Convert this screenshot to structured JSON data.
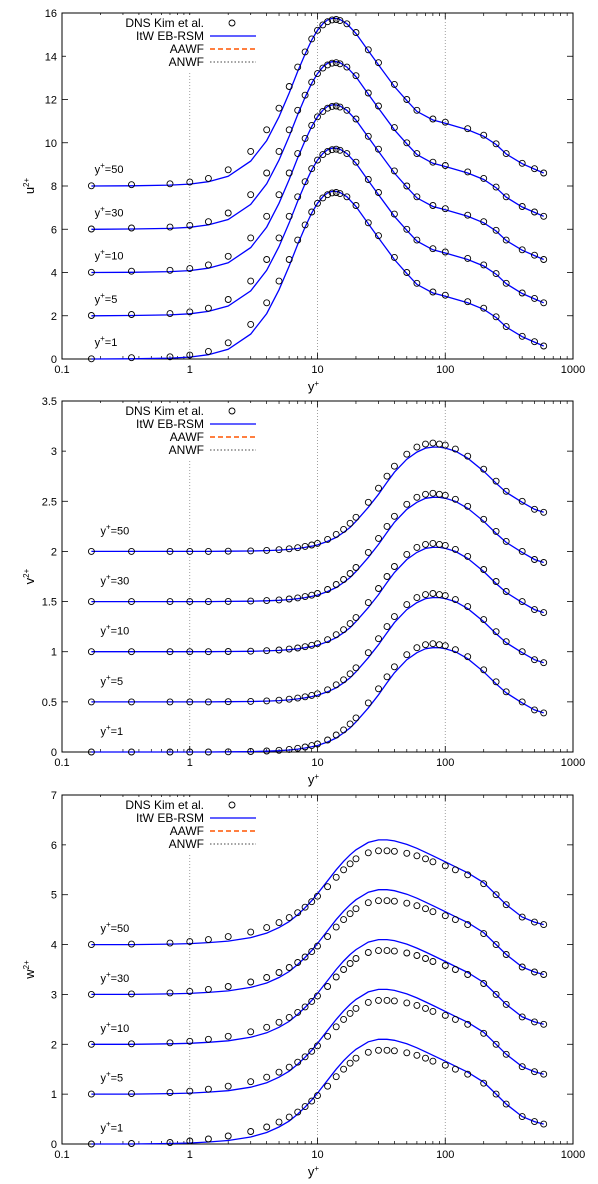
{
  "chart_data": [
    {
      "type": "line",
      "ylabel": "u",
      "ylabel_sup": "2+",
      "xlabel": "y",
      "xlabel_sup": "+",
      "xscale": "log",
      "xlim": [
        0.1,
        1000
      ],
      "ylim": [
        0,
        16
      ],
      "xticks": [
        "0.1",
        "1",
        "10",
        "100",
        "1000"
      ],
      "yticks": [
        "0",
        "2",
        "4",
        "6",
        "8",
        "10",
        "12",
        "14",
        "16"
      ],
      "grid": "vertical at decades",
      "legend": "top-left",
      "offset_step": 2,
      "annotations": [
        {
          "text": "y",
          "sup": "+",
          "rest": "=1",
          "x": 0.18,
          "y": 0.6
        },
        {
          "text": "y",
          "sup": "+",
          "rest": "=5",
          "x": 0.18,
          "y": 2.6
        },
        {
          "text": "y",
          "sup": "+",
          "rest": "=10",
          "x": 0.18,
          "y": 4.6
        },
        {
          "text": "y",
          "sup": "+",
          "rest": "=30",
          "x": 0.18,
          "y": 6.6
        },
        {
          "text": "y",
          "sup": "+",
          "rest": "=50",
          "x": 0.18,
          "y": 8.6
        }
      ],
      "series": [
        {
          "name": "DNS Kim et al.",
          "style": "circles",
          "color": "#000000",
          "x": [
            0.17,
            0.35,
            0.7,
            1.0,
            1.4,
            2.0,
            3.0,
            4.0,
            5.0,
            6.0,
            7.0,
            8.0,
            9.0,
            10.0,
            11.0,
            12.0,
            13.0,
            14.0,
            15.0,
            17.0,
            20.0,
            25.0,
            30.0,
            40.0,
            50.0,
            60.0,
            80.0,
            100.0,
            150.0,
            200.0,
            250.0,
            300.0,
            400.0,
            500.0,
            590.0
          ],
          "y": [
            0.01,
            0.06,
            0.1,
            0.18,
            0.35,
            0.75,
            1.6,
            2.6,
            3.6,
            4.6,
            5.5,
            6.2,
            6.8,
            7.2,
            7.45,
            7.6,
            7.68,
            7.7,
            7.65,
            7.5,
            7.1,
            6.3,
            5.7,
            4.7,
            4.0,
            3.5,
            3.1,
            2.95,
            2.65,
            2.35,
            1.95,
            1.5,
            1.05,
            0.8,
            0.6
          ]
        },
        {
          "name": "ItW EB-RSM",
          "style": "line",
          "color": "#0000ff",
          "x": [
            0.17,
            0.35,
            0.7,
            1.0,
            1.4,
            2.0,
            3.0,
            4.0,
            5.0,
            6.0,
            7.0,
            8.0,
            9.0,
            10.0,
            11.0,
            12.0,
            13.0,
            14.0,
            15.0,
            17.0,
            20.0,
            25.0,
            30.0,
            40.0,
            50.0,
            60.0,
            80.0,
            100.0,
            150.0,
            200.0,
            250.0,
            300.0,
            400.0,
            500.0,
            590.0
          ],
          "y": [
            0.0,
            0.01,
            0.04,
            0.09,
            0.2,
            0.45,
            1.15,
            2.1,
            3.2,
            4.3,
            5.3,
            6.1,
            6.75,
            7.2,
            7.5,
            7.68,
            7.75,
            7.75,
            7.7,
            7.5,
            7.05,
            6.25,
            5.6,
            4.6,
            3.95,
            3.45,
            3.05,
            2.9,
            2.6,
            2.3,
            1.92,
            1.48,
            1.03,
            0.78,
            0.6
          ]
        },
        {
          "name": "AAWF",
          "style": "dashed",
          "color": "#ff5500",
          "x": [],
          "y": []
        },
        {
          "name": "ANWF",
          "style": "dotted",
          "color": "#444444",
          "x": [],
          "y": []
        }
      ]
    },
    {
      "type": "line",
      "ylabel": "v",
      "ylabel_sup": "2+",
      "xlabel": "y",
      "xlabel_sup": "+",
      "xscale": "log",
      "xlim": [
        0.1,
        1000
      ],
      "ylim": [
        0,
        3.5
      ],
      "xticks": [
        "0.1",
        "1",
        "10",
        "100",
        "1000"
      ],
      "yticks": [
        "0",
        "0.5",
        "1",
        "1.5",
        "2",
        "2.5",
        "3",
        "3.5"
      ],
      "grid": "vertical at decades",
      "legend": "top-left",
      "offset_step": 0.5,
      "annotations": [
        {
          "text": "y",
          "sup": "+",
          "rest": "=1",
          "x": 0.2,
          "y": 0.17
        },
        {
          "text": "y",
          "sup": "+",
          "rest": "=5",
          "x": 0.2,
          "y": 0.67
        },
        {
          "text": "y",
          "sup": "+",
          "rest": "=10",
          "x": 0.2,
          "y": 1.17
        },
        {
          "text": "y",
          "sup": "+",
          "rest": "=30",
          "x": 0.2,
          "y": 1.67
        },
        {
          "text": "y",
          "sup": "+",
          "rest": "=50",
          "x": 0.2,
          "y": 2.17
        }
      ],
      "series": [
        {
          "name": "DNS Kim et al.",
          "style": "circles",
          "color": "#000000",
          "x": [
            0.17,
            0.35,
            0.7,
            1.0,
            1.4,
            2.0,
            3.0,
            4.0,
            5.0,
            6.0,
            7.0,
            8.0,
            9.0,
            10.0,
            12.0,
            14.0,
            16.0,
            18.0,
            20.0,
            25.0,
            30.0,
            35.0,
            40.0,
            50.0,
            60.0,
            70.0,
            80.0,
            90.0,
            100.0,
            120.0,
            150.0,
            200.0,
            250.0,
            300.0,
            400.0,
            500.0,
            590.0
          ],
          "y": [
            0.0,
            0.0,
            0.0,
            0.0,
            0.0,
            0.002,
            0.005,
            0.01,
            0.017,
            0.026,
            0.037,
            0.05,
            0.064,
            0.08,
            0.12,
            0.17,
            0.22,
            0.28,
            0.34,
            0.49,
            0.63,
            0.75,
            0.85,
            0.97,
            1.04,
            1.07,
            1.08,
            1.07,
            1.06,
            1.02,
            0.95,
            0.82,
            0.7,
            0.6,
            0.5,
            0.42,
            0.39
          ]
        },
        {
          "name": "ItW EB-RSM",
          "style": "line",
          "color": "#0000ff",
          "x": [
            0.17,
            0.35,
            0.7,
            1.0,
            1.4,
            2.0,
            3.0,
            4.0,
            5.0,
            6.0,
            7.0,
            8.0,
            9.0,
            10.0,
            12.0,
            14.0,
            16.0,
            18.0,
            20.0,
            25.0,
            30.0,
            35.0,
            40.0,
            50.0,
            60.0,
            70.0,
            80.0,
            90.0,
            100.0,
            120.0,
            150.0,
            200.0,
            250.0,
            300.0,
            400.0,
            500.0,
            590.0
          ],
          "y": [
            0.0,
            0.0,
            0.0,
            0.0,
            0.0,
            0.002,
            0.004,
            0.008,
            0.013,
            0.02,
            0.029,
            0.04,
            0.052,
            0.065,
            0.1,
            0.14,
            0.19,
            0.24,
            0.3,
            0.44,
            0.57,
            0.69,
            0.79,
            0.92,
            0.99,
            1.03,
            1.04,
            1.04,
            1.03,
            1.0,
            0.93,
            0.8,
            0.68,
            0.59,
            0.49,
            0.42,
            0.39
          ]
        },
        {
          "name": "AAWF",
          "style": "dashed",
          "color": "#ff5500",
          "x": [],
          "y": []
        },
        {
          "name": "ANWF",
          "style": "dotted",
          "color": "#444444",
          "x": [],
          "y": []
        }
      ]
    },
    {
      "type": "line",
      "ylabel": "w",
      "ylabel_sup": "2+",
      "xlabel": "y",
      "xlabel_sup": "+",
      "xscale": "log",
      "xlim": [
        0.1,
        1000
      ],
      "ylim": [
        0,
        7
      ],
      "xticks": [
        "0.1",
        "1",
        "10",
        "100",
        "1000"
      ],
      "yticks": [
        "0",
        "1",
        "2",
        "3",
        "4",
        "5",
        "6",
        "7"
      ],
      "grid": "vertical at decades",
      "legend": "top-left",
      "offset_step": 1,
      "annotations": [
        {
          "text": "y",
          "sup": "+",
          "rest": "=1",
          "x": 0.2,
          "y": 0.25
        },
        {
          "text": "y",
          "sup": "+",
          "rest": "=5",
          "x": 0.2,
          "y": 1.25
        },
        {
          "text": "y",
          "sup": "+",
          "rest": "=10",
          "x": 0.2,
          "y": 2.25
        },
        {
          "text": "y",
          "sup": "+",
          "rest": "=30",
          "x": 0.2,
          "y": 3.25
        },
        {
          "text": "y",
          "sup": "+",
          "rest": "=50",
          "x": 0.2,
          "y": 4.25
        }
      ],
      "series": [
        {
          "name": "DNS Kim et al.",
          "style": "circles",
          "color": "#000000",
          "x": [
            0.17,
            0.35,
            0.7,
            1.0,
            1.4,
            2.0,
            3.0,
            4.0,
            5.0,
            6.0,
            7.0,
            8.0,
            9.0,
            10.0,
            12.0,
            14.0,
            16.0,
            18.0,
            20.0,
            25.0,
            30.0,
            35.0,
            40.0,
            50.0,
            60.0,
            70.0,
            80.0,
            100.0,
            120.0,
            150.0,
            200.0,
            250.0,
            300.0,
            400.0,
            500.0,
            590.0
          ],
          "y": [
            0.0,
            0.01,
            0.03,
            0.06,
            0.1,
            0.16,
            0.25,
            0.34,
            0.44,
            0.54,
            0.64,
            0.75,
            0.86,
            0.97,
            1.16,
            1.35,
            1.5,
            1.62,
            1.72,
            1.84,
            1.88,
            1.88,
            1.87,
            1.83,
            1.78,
            1.72,
            1.66,
            1.58,
            1.5,
            1.4,
            1.22,
            1.0,
            0.8,
            0.55,
            0.45,
            0.4
          ]
        },
        {
          "name": "ItW EB-RSM",
          "style": "line",
          "color": "#0000ff",
          "x": [
            0.17,
            0.35,
            0.7,
            1.0,
            1.4,
            2.0,
            3.0,
            4.0,
            5.0,
            6.0,
            7.0,
            8.0,
            9.0,
            10.0,
            12.0,
            14.0,
            16.0,
            18.0,
            20.0,
            25.0,
            30.0,
            35.0,
            40.0,
            50.0,
            60.0,
            70.0,
            80.0,
            100.0,
            120.0,
            150.0,
            200.0,
            250.0,
            300.0,
            400.0,
            500.0,
            590.0
          ],
          "y": [
            0.0,
            0.0,
            0.01,
            0.02,
            0.04,
            0.07,
            0.14,
            0.23,
            0.34,
            0.46,
            0.6,
            0.74,
            0.88,
            1.02,
            1.28,
            1.5,
            1.67,
            1.8,
            1.9,
            2.05,
            2.1,
            2.1,
            2.08,
            2.01,
            1.93,
            1.85,
            1.78,
            1.66,
            1.56,
            1.44,
            1.24,
            1.0,
            0.8,
            0.55,
            0.45,
            0.4
          ]
        },
        {
          "name": "AAWF",
          "style": "dashed",
          "color": "#ff5500",
          "x": [],
          "y": []
        },
        {
          "name": "ANWF",
          "style": "dotted",
          "color": "#444444",
          "x": [],
          "y": []
        }
      ]
    }
  ]
}
